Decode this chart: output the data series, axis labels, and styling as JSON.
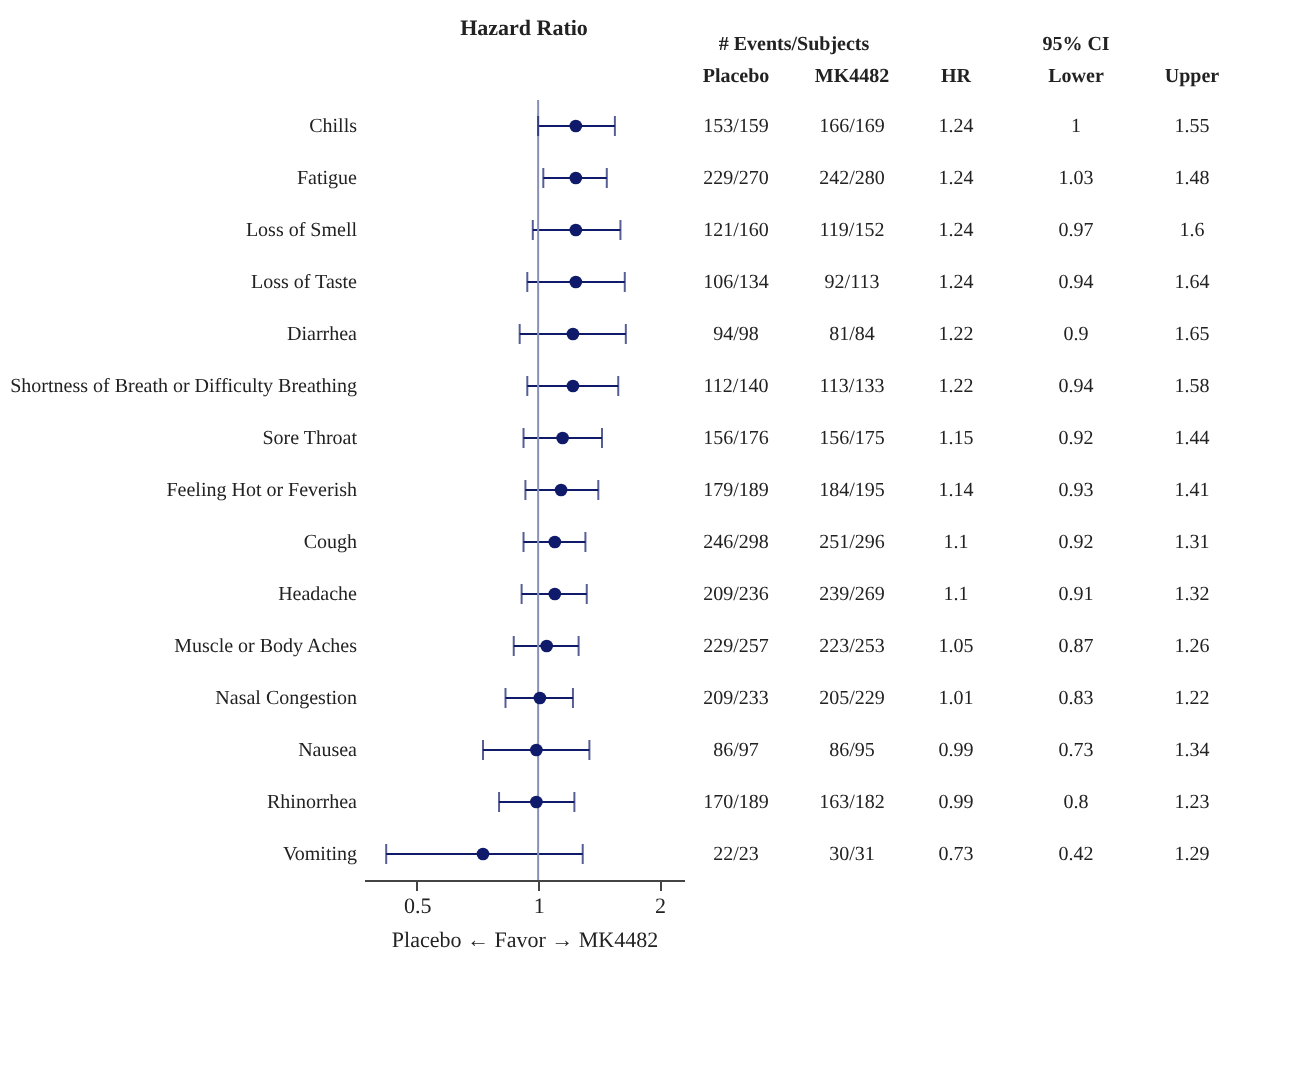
{
  "chart_data": {
    "type": "scatter",
    "orientation": "horizontal",
    "title": "Hazard Ratio",
    "xlabel": "Placebo ← Favor → MK4482",
    "categories": [
      "Chills",
      "Fatigue",
      "Loss of Smell",
      "Loss of Taste",
      "Diarrhea",
      "Shortness of Breath or Difficulty Breathing",
      "Sore Throat",
      "Feeling Hot or Feverish",
      "Cough",
      "Headache",
      "Muscle or Body Aches",
      "Nasal Congestion",
      "Nausea",
      "Rhinorrhea",
      "Vomiting"
    ],
    "values": [
      1.24,
      1.24,
      1.24,
      1.24,
      1.22,
      1.22,
      1.15,
      1.14,
      1.1,
      1.1,
      1.05,
      1.01,
      0.99,
      0.99,
      0.73
    ],
    "errors": [
      [
        1,
        1.55
      ],
      [
        1.03,
        1.48
      ],
      [
        0.97,
        1.6
      ],
      [
        0.94,
        1.64
      ],
      [
        0.9,
        1.65
      ],
      [
        0.94,
        1.58
      ],
      [
        0.92,
        1.44
      ],
      [
        0.93,
        1.41
      ],
      [
        0.92,
        1.31
      ],
      [
        0.91,
        1.32
      ],
      [
        0.87,
        1.26
      ],
      [
        0.83,
        1.22
      ],
      [
        0.73,
        1.34
      ],
      [
        0.8,
        1.23
      ],
      [
        0.42,
        1.29
      ]
    ],
    "color": "#101a6a",
    "marker": "circle",
    "data_labels": true,
    "log": "x",
    "xlim": [
      0.37,
      2.3
    ],
    "xticks": [
      0.5,
      1,
      2
    ],
    "ref_lines": [
      {
        "axis": "x",
        "value": 1,
        "color": "#8890b8"
      }
    ],
    "annotations": [
      "# Events/Subjects",
      "Placebo",
      "MK4482",
      "HR",
      "95% CI",
      "Lower",
      "Upper",
      "153/159",
      "166/169",
      "1",
      "1.55",
      "229/270",
      "242/280",
      "1.03",
      "1.48",
      "121/160",
      "119/152",
      "0.97",
      "1.6",
      "106/134",
      "92/113",
      "0.94",
      "1.64",
      "94/98",
      "81/84",
      "0.9",
      "1.65",
      "112/140",
      "113/133",
      "0.94",
      "1.58",
      "156/176",
      "156/175",
      "0.92",
      "1.44",
      "179/189",
      "184/195",
      "0.93",
      "1.41",
      "246/298",
      "251/296",
      "0.92",
      "1.31",
      "209/236",
      "239/269",
      "0.91",
      "1.32",
      "229/257",
      "223/253",
      "0.87",
      "1.26",
      "209/233",
      "205/229",
      "0.83",
      "1.22",
      "86/97",
      "86/95",
      "0.73",
      "1.34",
      "170/189",
      "163/182",
      "0.8",
      "1.23",
      "22/23",
      "30/31",
      "0.42",
      "1.29"
    ]
  }
}
